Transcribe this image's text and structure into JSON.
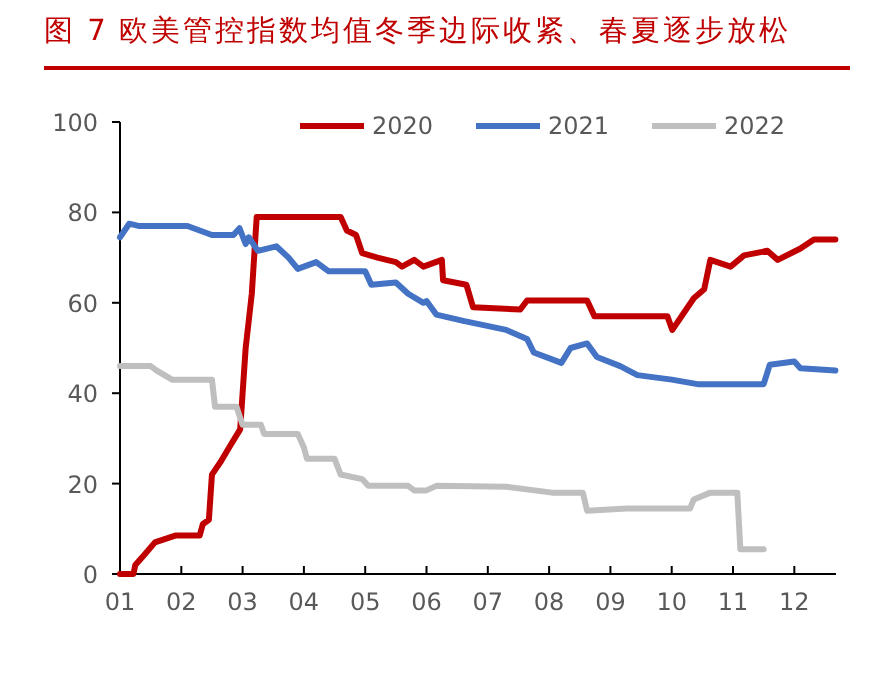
{
  "chart_data": {
    "type": "line",
    "title": "图 7 欧美管控指数均值冬季边际收紧、春夏逐步放松",
    "xlim": [
      1,
      12.68
    ],
    "xticks": [
      {
        "value": 1,
        "label": "01"
      },
      {
        "value": 2,
        "label": "02"
      },
      {
        "value": 3,
        "label": "03"
      },
      {
        "value": 4,
        "label": "04"
      },
      {
        "value": 5,
        "label": "05"
      },
      {
        "value": 6,
        "label": "06"
      },
      {
        "value": 7,
        "label": "07"
      },
      {
        "value": 8,
        "label": "08"
      },
      {
        "value": 9,
        "label": "09"
      },
      {
        "value": 10,
        "label": "10"
      },
      {
        "value": 11,
        "label": "11"
      },
      {
        "value": 12,
        "label": "12"
      }
    ],
    "ylim": [
      0,
      100
    ],
    "yticks": [
      0,
      20,
      40,
      60,
      80,
      100
    ],
    "legend": "top",
    "grid": false,
    "marker": "none",
    "line_style": "solid",
    "series": [
      {
        "name": "2020",
        "color": "#c00000",
        "x": [
          1,
          1.22,
          1.25,
          1.38,
          1.57,
          1.9,
          2.3,
          2.35,
          2.45,
          2.5,
          2.65,
          2.78,
          2.96,
          3.05,
          3.15,
          3.23,
          4.6,
          4.7,
          4.85,
          4.95,
          5.2,
          5.5,
          5.6,
          5.8,
          5.95,
          6.25,
          6.27,
          6.65,
          6.76,
          7.53,
          7.64,
          8.62,
          8.74,
          9.93,
          10.01,
          10.36,
          10.53,
          10.63,
          10.96,
          11.18,
          11.56,
          11.73,
          12.1,
          12.32,
          12.67
        ],
        "values": [
          0,
          0,
          2,
          4,
          7,
          8.5,
          8.5,
          11,
          12,
          22,
          25,
          28,
          32,
          50,
          62,
          79,
          79,
          76,
          75,
          71,
          70,
          69,
          68,
          69.5,
          68,
          69.5,
          65,
          64,
          59,
          58.5,
          60.5,
          60.5,
          57,
          57,
          54,
          61,
          63,
          69.5,
          68,
          70.5,
          71.5,
          69.5,
          72,
          74,
          74
        ]
      },
      {
        "name": "2021",
        "color": "#4472c4",
        "x": [
          1,
          1.15,
          1.3,
          2.1,
          2.3,
          2.5,
          2.85,
          2.95,
          3.05,
          3.1,
          3.25,
          3.55,
          3.75,
          3.9,
          4.2,
          4.4,
          5.0,
          5.1,
          5.5,
          5.7,
          5.95,
          6.0,
          6.16,
          6.6,
          7.3,
          7.64,
          7.75,
          8.2,
          8.35,
          8.62,
          8.78,
          9.16,
          9.44,
          10.0,
          10.42,
          11.5,
          11.6,
          12.0,
          12.1,
          12.67
        ],
        "values": [
          74.5,
          77.5,
          77,
          77,
          76,
          75,
          75,
          76.5,
          73,
          74.5,
          71.5,
          72.5,
          70,
          67.5,
          69,
          67,
          67,
          64,
          64.5,
          62,
          60,
          60.4,
          57.4,
          56,
          54,
          52,
          49,
          46.7,
          50,
          51,
          48,
          46,
          44,
          43,
          42,
          42,
          46.3,
          47,
          45.5,
          45
        ]
      },
      {
        "name": "2022",
        "color": "#bfbfbf",
        "x": [
          1,
          1.5,
          1.6,
          1.85,
          2.5,
          2.55,
          2.9,
          3.0,
          3.3,
          3.35,
          3.9,
          4.0,
          4.05,
          4.5,
          4.6,
          4.95,
          5.05,
          5.7,
          5.8,
          6.0,
          6.16,
          7.3,
          8.05,
          8.55,
          8.62,
          9.27,
          10.3,
          10.36,
          10.63,
          11.07,
          11.12,
          11.5
        ],
        "values": [
          46,
          46,
          45,
          43,
          43,
          37,
          37,
          33,
          33,
          31,
          31,
          28,
          25.5,
          25.5,
          22,
          21,
          19.5,
          19.5,
          18.5,
          18.5,
          19.5,
          19.3,
          18,
          18,
          14,
          14.5,
          14.5,
          16.5,
          18,
          18,
          5.5,
          5.5
        ]
      }
    ]
  }
}
